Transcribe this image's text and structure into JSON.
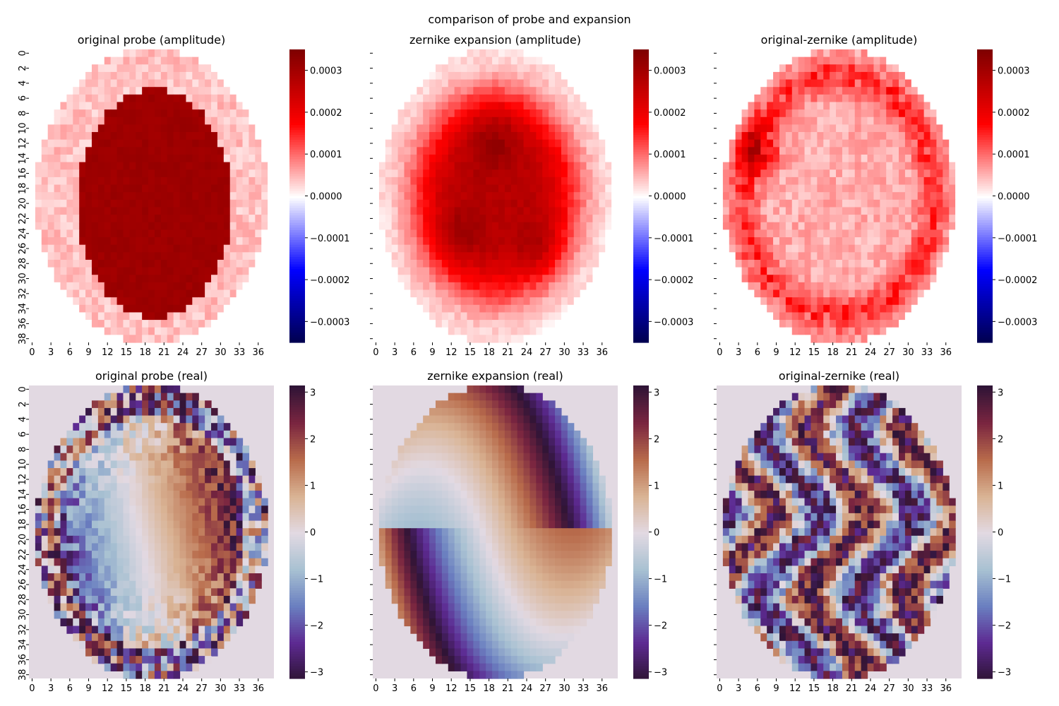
{
  "figure": {
    "suptitle": "comparison of probe and expansion"
  },
  "chart_data": [
    {
      "type": "heatmap",
      "title": "original probe (amplitude)",
      "colormap": "seismic",
      "vmin": -0.00035,
      "vmax": 0.00035,
      "colorbar_ticks": [
        "0.0003",
        "0.0002",
        "0.0001",
        "0.0000",
        "−0.0001",
        "−0.0002",
        "−0.0003"
      ],
      "colorbar_tick_values": [
        0.0003,
        0.0002,
        0.0001,
        0.0,
        -0.0001,
        -0.0002,
        -0.0003
      ],
      "xticks": [
        "0",
        "3",
        "6",
        "9",
        "12",
        "15",
        "18",
        "21",
        "24",
        "27",
        "30",
        "33",
        "36"
      ],
      "yticks": [
        "0",
        "2",
        "4",
        "6",
        "8",
        "10",
        "12",
        "14",
        "16",
        "18",
        "20",
        "22",
        "24",
        "26",
        "28",
        "30",
        "32",
        "34",
        "36",
        "38"
      ],
      "show_yticklabels": true,
      "grid_size": [
        39,
        39
      ],
      "description_levels": {
        "core": 0.00031,
        "ring": 4e-05,
        "outside": 0.0
      }
    },
    {
      "type": "heatmap",
      "title": "zernike expansion (amplitude)",
      "colormap": "seismic",
      "vmin": -0.00035,
      "vmax": 0.00035,
      "colorbar_ticks": [
        "0.0003",
        "0.0002",
        "0.0001",
        "0.0000",
        "−0.0001",
        "−0.0002",
        "−0.0003"
      ],
      "colorbar_tick_values": [
        0.0003,
        0.0002,
        0.0001,
        0.0,
        -0.0001,
        -0.0002,
        -0.0003
      ],
      "xticks": [
        "0",
        "3",
        "6",
        "9",
        "12",
        "15",
        "18",
        "21",
        "24",
        "27",
        "30",
        "33",
        "36"
      ],
      "yticks": [
        "0",
        "2",
        "4",
        "6",
        "8",
        "10",
        "12",
        "14",
        "16",
        "18",
        "20",
        "22",
        "24",
        "26",
        "28",
        "30",
        "32",
        "34",
        "36",
        "38"
      ],
      "show_yticklabels": false,
      "grid_size": [
        39,
        39
      ]
    },
    {
      "type": "heatmap",
      "title": "original-zernike (amplitude)",
      "colormap": "seismic",
      "vmin": -0.00035,
      "vmax": 0.00035,
      "colorbar_ticks": [
        "0.0003",
        "0.0002",
        "0.0001",
        "0.0000",
        "−0.0001",
        "−0.0002",
        "−0.0003"
      ],
      "colorbar_tick_values": [
        0.0003,
        0.0002,
        0.0001,
        0.0,
        -0.0001,
        -0.0002,
        -0.0003
      ],
      "xticks": [
        "0",
        "3",
        "6",
        "9",
        "12",
        "15",
        "18",
        "21",
        "24",
        "27",
        "30",
        "33",
        "36"
      ],
      "yticks": [
        "0",
        "2",
        "4",
        "6",
        "8",
        "10",
        "12",
        "14",
        "16",
        "18",
        "20",
        "22",
        "24",
        "26",
        "28",
        "30",
        "32",
        "34",
        "36",
        "38"
      ],
      "show_yticklabels": false,
      "grid_size": [
        39,
        39
      ]
    },
    {
      "type": "heatmap",
      "title": "original probe (real)",
      "colormap": "twilight_shifted",
      "vmin": -3.14159,
      "vmax": 3.14159,
      "colorbar_ticks": [
        "3",
        "2",
        "1",
        "0",
        "−1",
        "−2",
        "−3"
      ],
      "colorbar_tick_values": [
        3,
        2,
        1,
        0,
        -1,
        -2,
        -3
      ],
      "xticks": [
        "0",
        "3",
        "6",
        "9",
        "12",
        "15",
        "18",
        "21",
        "24",
        "27",
        "30",
        "33",
        "36"
      ],
      "yticks": [
        "0",
        "2",
        "4",
        "6",
        "8",
        "10",
        "12",
        "14",
        "16",
        "18",
        "20",
        "22",
        "24",
        "26",
        "28",
        "30",
        "32",
        "34",
        "36",
        "38"
      ],
      "show_yticklabels": true,
      "grid_size": [
        39,
        39
      ]
    },
    {
      "type": "heatmap",
      "title": "zernike expansion (real)",
      "colormap": "twilight_shifted",
      "vmin": -3.14159,
      "vmax": 3.14159,
      "colorbar_ticks": [
        "3",
        "2",
        "1",
        "0",
        "−1",
        "−2",
        "−3"
      ],
      "colorbar_tick_values": [
        3,
        2,
        1,
        0,
        -1,
        -2,
        -3
      ],
      "xticks": [
        "0",
        "3",
        "6",
        "9",
        "12",
        "15",
        "18",
        "21",
        "24",
        "27",
        "30",
        "33",
        "36"
      ],
      "yticks": [
        "0",
        "2",
        "4",
        "6",
        "8",
        "10",
        "12",
        "14",
        "16",
        "18",
        "20",
        "22",
        "24",
        "26",
        "28",
        "30",
        "32",
        "34",
        "36",
        "38"
      ],
      "show_yticklabels": false,
      "grid_size": [
        39,
        39
      ]
    },
    {
      "type": "heatmap",
      "title": "original-zernike (real)",
      "colormap": "twilight_shifted",
      "vmin": -3.14159,
      "vmax": 3.14159,
      "colorbar_ticks": [
        "3",
        "2",
        "1",
        "0",
        "−1",
        "−2",
        "−3"
      ],
      "colorbar_tick_values": [
        3,
        2,
        1,
        0,
        -1,
        -2,
        -3
      ],
      "xticks": [
        "0",
        "3",
        "6",
        "9",
        "12",
        "15",
        "18",
        "21",
        "24",
        "27",
        "30",
        "33",
        "36"
      ],
      "yticks": [
        "0",
        "2",
        "4",
        "6",
        "8",
        "10",
        "12",
        "14",
        "16",
        "18",
        "20",
        "22",
        "24",
        "26",
        "28",
        "30",
        "32",
        "34",
        "36",
        "38"
      ],
      "show_yticklabels": false,
      "grid_size": [
        39,
        39
      ]
    }
  ],
  "colors": {
    "seismic_stops": [
      "#00004c",
      "#0000ff",
      "#ffffff",
      "#ff0000",
      "#800000"
    ],
    "twilight_stops": [
      "#2f1436",
      "#5d2a92",
      "#6a7fc0",
      "#a8c1d2",
      "#e2d9e2",
      "#d9b394",
      "#b86b4b",
      "#7a2540",
      "#2f1436"
    ],
    "background_phase": "#e2d9e2"
  }
}
